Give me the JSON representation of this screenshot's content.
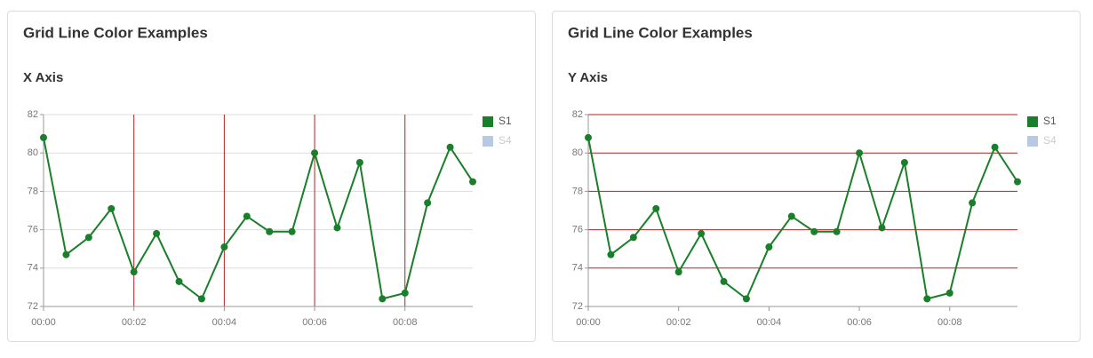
{
  "chart_data": [
    {
      "type": "line",
      "title": "Grid Line Color Examples",
      "subtitle": "X Axis",
      "x": [
        0,
        0.5,
        1,
        1.5,
        2,
        2.5,
        3,
        3.5,
        4,
        4.5,
        5,
        5.5,
        6,
        6.5,
        7,
        7.5,
        8,
        8.5,
        9,
        9.5
      ],
      "series": [
        {
          "name": "S1",
          "color": "#1a7f2a",
          "values": [
            80.8,
            74.7,
            75.6,
            77.1,
            73.8,
            75.8,
            73.3,
            72.4,
            75.1,
            76.7,
            75.9,
            75.9,
            80.0,
            76.1,
            79.5,
            72.4,
            72.7,
            77.4,
            80.3,
            78.5
          ]
        },
        {
          "name": "S4",
          "color": "#b8c9e6",
          "hidden": true
        }
      ],
      "xlim": [
        0,
        9.5
      ],
      "xticks": [
        {
          "value": 0,
          "label": "00:00"
        },
        {
          "value": 2,
          "label": "00:02"
        },
        {
          "value": 4,
          "label": "00:04"
        },
        {
          "value": 6,
          "label": "00:06"
        },
        {
          "value": 8,
          "label": "00:08"
        }
      ],
      "ylim": [
        72,
        82
      ],
      "yticks": [
        72,
        74,
        76,
        78,
        80,
        82
      ],
      "grid": {
        "x": {
          "show": true,
          "color": "#b22222"
        },
        "y": {
          "show": true,
          "color": "#dddddd"
        }
      },
      "legend": "right"
    },
    {
      "type": "line",
      "title": "Grid Line Color Examples",
      "subtitle": "Y Axis",
      "x": [
        0,
        0.5,
        1,
        1.5,
        2,
        2.5,
        3,
        3.5,
        4,
        4.5,
        5,
        5.5,
        6,
        6.5,
        7,
        7.5,
        8,
        8.5,
        9,
        9.5
      ],
      "series": [
        {
          "name": "S1",
          "color": "#1a7f2a",
          "values": [
            80.8,
            74.7,
            75.6,
            77.1,
            73.8,
            75.8,
            73.3,
            72.4,
            75.1,
            76.7,
            75.9,
            75.9,
            80.0,
            76.1,
            79.5,
            72.4,
            72.7,
            77.4,
            80.3,
            78.5
          ]
        },
        {
          "name": "S4",
          "color": "#b8c9e6",
          "hidden": true
        }
      ],
      "xlim": [
        0,
        9.5
      ],
      "xticks": [
        {
          "value": 0,
          "label": "00:00"
        },
        {
          "value": 2,
          "label": "00:02"
        },
        {
          "value": 4,
          "label": "00:04"
        },
        {
          "value": 6,
          "label": "00:06"
        },
        {
          "value": 8,
          "label": "00:08"
        }
      ],
      "ylim": [
        72,
        82
      ],
      "yticks": [
        72,
        74,
        76,
        78,
        80,
        82
      ],
      "grid": {
        "x": {
          "show": false,
          "color": "#dddddd"
        },
        "y": {
          "show": true,
          "color": "#b22222"
        }
      },
      "legend": "right"
    }
  ]
}
